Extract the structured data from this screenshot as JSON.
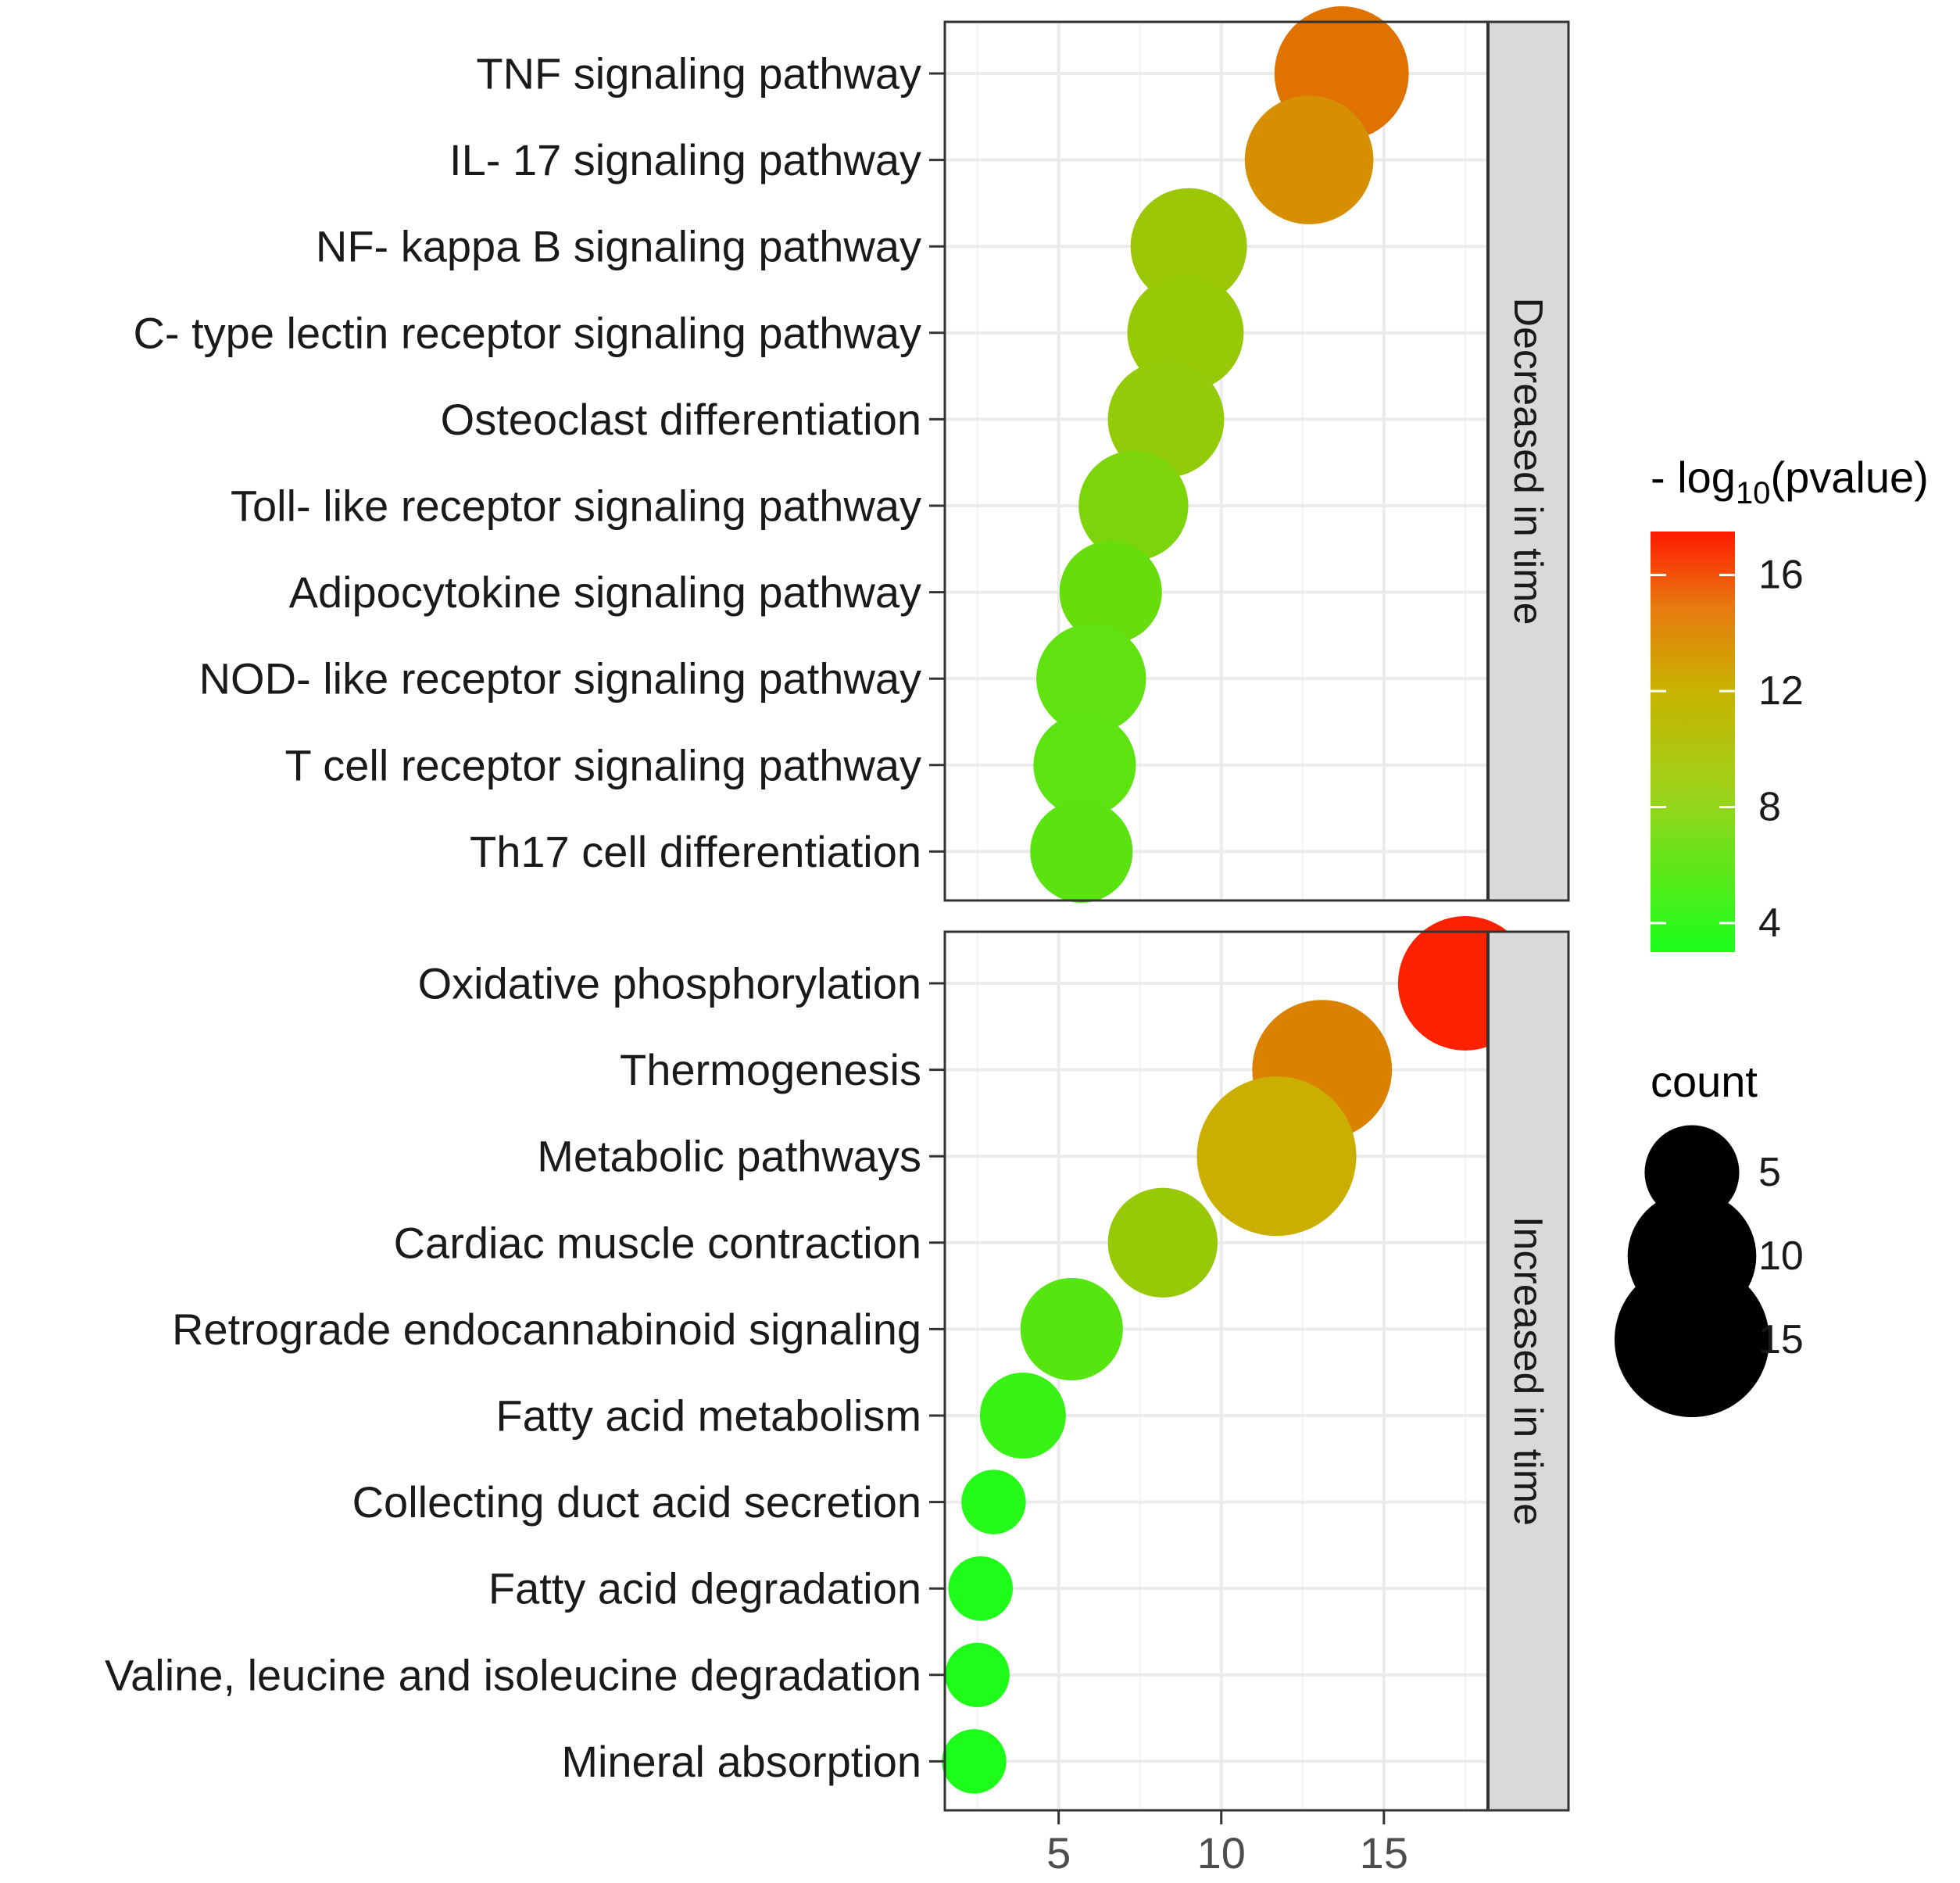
{
  "chart_data": {
    "type": "scatter",
    "subtype": "faceted-dotplot",
    "title": "",
    "xlabel": "",
    "ylabel": "",
    "xlim": [
      1.5,
      18.2
    ],
    "x_ticks": [
      5,
      10,
      15
    ],
    "grid": true,
    "panels": [
      {
        "strip_label": "Decreased in time",
        "points": [
          {
            "label": "TNF signaling pathway",
            "x": 13.7,
            "pvalue": 14.2,
            "count": 11
          },
          {
            "label": "IL- 17 signaling pathway",
            "x": 12.7,
            "pvalue": 13.1,
            "count": 10
          },
          {
            "label": "NF- kappa B signaling pathway",
            "x": 9.0,
            "pvalue": 9.5,
            "count": 8
          },
          {
            "label": "C- type lectin receptor signaling pathway",
            "x": 8.9,
            "pvalue": 9.3,
            "count": 8
          },
          {
            "label": "Osteoclast differentiation",
            "x": 8.3,
            "pvalue": 9.0,
            "count": 8
          },
          {
            "label": "Toll- like receptor signaling pathway",
            "x": 7.3,
            "pvalue": 7.9,
            "count": 7
          },
          {
            "label": "Adipocytokine signaling pathway",
            "x": 6.6,
            "pvalue": 6.9,
            "count": 6
          },
          {
            "label": "NOD- like receptor signaling pathway",
            "x": 6.0,
            "pvalue": 6.5,
            "count": 7
          },
          {
            "label": "T cell receptor signaling pathway",
            "x": 5.8,
            "pvalue": 6.3,
            "count": 6
          },
          {
            "label": "Th17 cell differentiation",
            "x": 5.7,
            "pvalue": 6.2,
            "count": 6
          }
        ]
      },
      {
        "strip_label": "Increased in time",
        "points": [
          {
            "label": "Oxidative phosphorylation",
            "x": 17.5,
            "pvalue": 17.2,
            "count": 11
          },
          {
            "label": "Thermogenesis",
            "x": 13.1,
            "pvalue": 13.6,
            "count": 12
          },
          {
            "label": "Metabolic pathways",
            "x": 11.7,
            "pvalue": 11.9,
            "count": 16
          },
          {
            "label": "Cardiac muscle contraction",
            "x": 8.2,
            "pvalue": 9.3,
            "count": 7
          },
          {
            "label": "Retrograde endocannabinoid signaling",
            "x": 5.4,
            "pvalue": 6.0,
            "count": 6
          },
          {
            "label": "Fatty acid metabolism",
            "x": 3.9,
            "pvalue": 4.5,
            "count": 4
          },
          {
            "label": "Collecting duct acid secretion",
            "x": 3.0,
            "pvalue": 3.5,
            "count": 2
          },
          {
            "label": "Fatty acid degradation",
            "x": 2.6,
            "pvalue": 3.2,
            "count": 2
          },
          {
            "label": "Valine, leucine and isoleucine degradation",
            "x": 2.5,
            "pvalue": 3.2,
            "count": 2
          },
          {
            "label": "Mineral absorption",
            "x": 2.4,
            "pvalue": 3.1,
            "count": 2
          }
        ]
      }
    ],
    "color_legend": {
      "title_prefix": "- log",
      "title_sub": "10",
      "title_suffix": "(pvalue)",
      "range": [
        3,
        17.5
      ],
      "ticks": [
        4,
        8,
        12,
        16
      ],
      "low_color": "#1aff1a",
      "mid_color": "#c8b400",
      "high_color": "#ff1a00"
    },
    "size_legend": {
      "title": "count",
      "values": [
        5,
        10,
        15
      ],
      "color": "#000000"
    }
  }
}
